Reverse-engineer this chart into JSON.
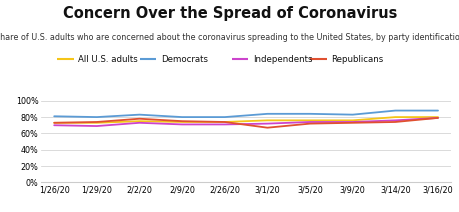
{
  "title": "Concern Over the Spread of Coronavirus",
  "subtitle": "Share of U.S. adults who are concerned about the coronavirus spreading to the United States, by party identification",
  "x_labels": [
    "1/26/20",
    "1/29/20",
    "2/2/20",
    "2/9/20",
    "2/26/20",
    "3/1/20",
    "3/5/20",
    "3/9/20",
    "3/14/20",
    "3/16/20"
  ],
  "series": {
    "All U.S. adults": {
      "color": "#f5c518",
      "values": [
        0.73,
        0.73,
        0.75,
        0.74,
        0.74,
        0.76,
        0.76,
        0.76,
        0.8,
        0.8
      ]
    },
    "Democrats": {
      "color": "#5b9bd5",
      "values": [
        0.81,
        0.8,
        0.83,
        0.8,
        0.8,
        0.84,
        0.84,
        0.83,
        0.88,
        0.88
      ]
    },
    "Independents": {
      "color": "#cc44cc",
      "values": [
        0.7,
        0.69,
        0.73,
        0.71,
        0.71,
        0.72,
        0.74,
        0.74,
        0.76,
        0.79
      ]
    },
    "Republicans": {
      "color": "#e05030",
      "values": [
        0.73,
        0.74,
        0.78,
        0.75,
        0.74,
        0.67,
        0.72,
        0.73,
        0.74,
        0.79
      ]
    }
  },
  "ylim": [
    0.0,
    1.04
  ],
  "yticks": [
    0.0,
    0.2,
    0.4,
    0.6,
    0.8,
    1.0
  ],
  "ytick_labels": [
    "0%",
    "20%",
    "40%",
    "60%",
    "80%",
    "100%"
  ],
  "background_color": "#ffffff",
  "grid_color": "#cccccc",
  "title_fontsize": 10.5,
  "subtitle_fontsize": 5.8,
  "legend_fontsize": 6.2,
  "tick_fontsize": 5.8,
  "line_width": 1.3
}
